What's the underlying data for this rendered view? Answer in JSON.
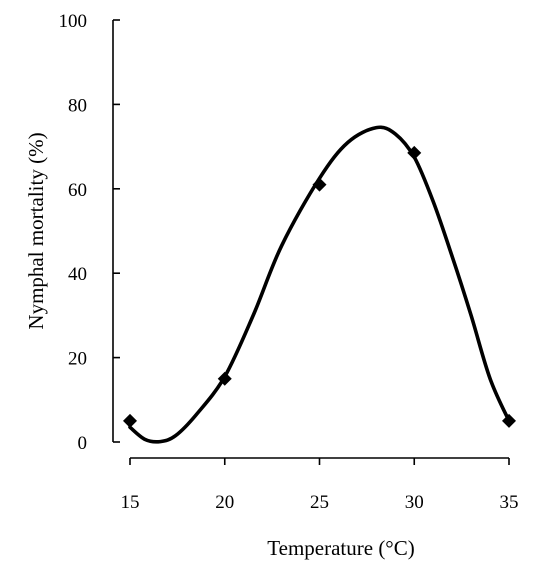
{
  "chart_data": {
    "type": "scatter",
    "title": "",
    "xlabel": "Temperature (°C)",
    "ylabel": "Nymphal mortality (%)",
    "xlim": [
      15,
      35
    ],
    "ylim": [
      0,
      100
    ],
    "x_ticks": [
      "15",
      "20",
      "25",
      "30",
      "35"
    ],
    "y_ticks": [
      "0",
      "20",
      "40",
      "60",
      "80",
      "100"
    ],
    "grid": false,
    "legend": "none",
    "marker": "diamond",
    "color": "#000000",
    "series": [
      {
        "x": [
          15,
          20,
          25,
          30,
          35
        ],
        "values": [
          5,
          15,
          61,
          68.5,
          5
        ]
      }
    ],
    "fit_curve": {
      "x": [
        15,
        15.8,
        16.6,
        17.4,
        18.5,
        20,
        21.5,
        23,
        25,
        26.5,
        28,
        29,
        30,
        31,
        32,
        33,
        34,
        35
      ],
      "y": [
        3.5,
        0.6,
        0.1,
        1.5,
        6.5,
        15.5,
        30,
        46.5,
        62.5,
        71,
        74.5,
        73,
        67.5,
        57,
        44,
        30,
        15,
        5
      ]
    }
  }
}
